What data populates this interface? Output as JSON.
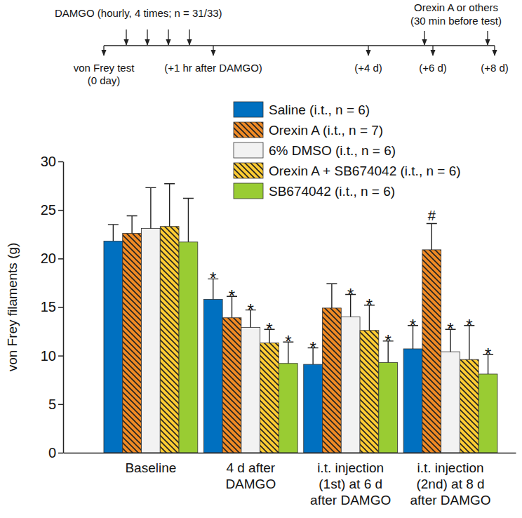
{
  "chart_data": {
    "type": "bar",
    "y_label": "von Frey filaments (g)",
    "categories": [
      "Baseline",
      "4 d after\nDAMGO",
      "i.t. injection\n(1st) at 6 d\nafter DAMGO",
      "i.t. injection\n(2nd) at 8 d\nafter DAMGO"
    ],
    "series": [
      {
        "name": "Saline (i.t., n = 6)",
        "color": "#0070c0",
        "values": [
          21.8,
          15.8,
          9.1,
          10.7
        ],
        "errors": [
          1.7,
          2.1,
          1.7,
          2.4
        ],
        "annotations": [
          null,
          "*",
          "*",
          "*"
        ]
      },
      {
        "name": "Orexin A (i.t., n = 7)",
        "color": "#f08a24",
        "marker": "hatched",
        "values": [
          22.6,
          13.9,
          14.9,
          20.9
        ],
        "errors": [
          1.8,
          2.2,
          2.5,
          2.7
        ],
        "annotations": [
          null,
          "*",
          null,
          "#"
        ]
      },
      {
        "name": "6% DMSO (i.t., n = 6)",
        "color": "#f2f2f2",
        "values": [
          23.1,
          12.9,
          14.0,
          10.4
        ],
        "errors": [
          4.2,
          1.8,
          2.3,
          2.3
        ],
        "annotations": [
          null,
          "*",
          "*",
          "*"
        ]
      },
      {
        "name": "Orexin A + SB674042 (i.t., n = 6)",
        "color": "#ffcc33",
        "marker": "hatched",
        "values": [
          23.3,
          11.3,
          12.6,
          9.6
        ],
        "errors": [
          4.4,
          1.4,
          2.6,
          3.5
        ],
        "annotations": [
          null,
          "*",
          "*",
          "*"
        ]
      },
      {
        "name": "SB674042 (i.t., n = 6)",
        "color": "#99cc33",
        "values": [
          21.7,
          9.2,
          9.3,
          8.1
        ],
        "errors": [
          4.5,
          2.2,
          2.2,
          2.0
        ],
        "annotations": [
          null,
          "*",
          "*",
          "*"
        ]
      }
    ],
    "ylim": [
      0,
      30
    ],
    "yticks": [
      0,
      5,
      10,
      15,
      20,
      25,
      30
    ],
    "grid": false,
    "legend": "top-right",
    "timeline": {
      "dosing_label": "DAMGO (hourly, 4 times; n = 31/33)",
      "treatment_label": [
        "Orexin A or others",
        "(30 min before test)"
      ],
      "time_points": [
        [
          "von Frey test",
          "(0 day)"
        ],
        [
          "(+1 hr after DAMGO)"
        ],
        [
          "(+4 d)"
        ],
        [
          "(+6 d)"
        ],
        [
          "(+8 d)"
        ]
      ]
    }
  }
}
